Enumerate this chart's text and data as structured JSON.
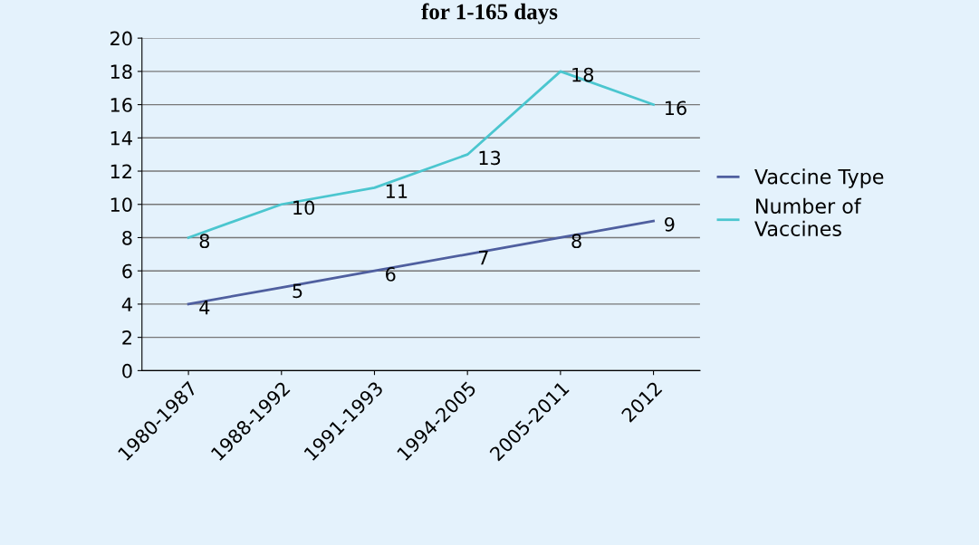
{
  "chart_data": {
    "type": "line",
    "title": "for 1-165 days",
    "categories": [
      "1980-1987",
      "1988-1992",
      "1991-1993",
      "1994-2005",
      "2005-2011",
      "2012"
    ],
    "series": [
      {
        "name": "Vaccine Type",
        "color": "#4f5f9f",
        "values": [
          4,
          5,
          6,
          7,
          8,
          9
        ]
      },
      {
        "name": "Number of\nVaccines",
        "color": "#4bc6cf",
        "values": [
          8,
          10,
          11,
          13,
          18,
          16
        ]
      }
    ],
    "ylim": [
      0,
      20
    ],
    "yticks": [
      0,
      2,
      4,
      6,
      8,
      10,
      12,
      14,
      16,
      18,
      20
    ],
    "grid": "y",
    "legend": "right",
    "data_labels": true,
    "marker": "none",
    "line_style": "solid"
  }
}
